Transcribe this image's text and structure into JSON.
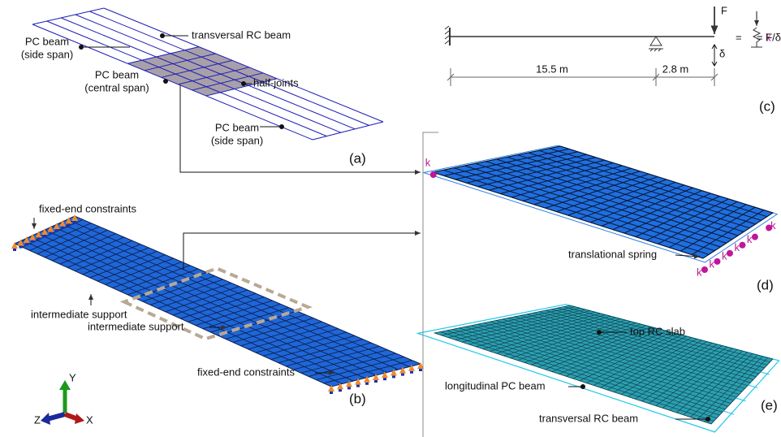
{
  "panel_a": {
    "label": "(a)",
    "pc_beam_side_1": [
      "PC beam",
      "(side span)"
    ],
    "transversal_rc_beam": "transversal RC beam",
    "pc_beam_central": [
      "PC beam",
      "(central span)"
    ],
    "half_joints": "half-joints",
    "pc_beam_side_2": [
      "PC beam",
      "(side span)"
    ]
  },
  "panel_b": {
    "label": "(b)",
    "fixed_end_1": "fixed-end constraints",
    "support_1": "intermediate support",
    "support_2": "intermediate support",
    "fixed_end_2": "fixed-end constraints"
  },
  "axes": {
    "y": "Y",
    "z": "Z",
    "x": "X"
  },
  "panel_c": {
    "label": "(c)",
    "force": "F",
    "equals": "=",
    "displacement": "δ",
    "stiffness": "k",
    "stiffness_formula": "= F/δ",
    "span_length": "15.5 m",
    "overhang_length": "2.8 m"
  },
  "panel_d": {
    "label": "(d)",
    "spring_symbol": "k",
    "translational_spring": "translational spring"
  },
  "panel_e": {
    "label": "(e)",
    "top_slab": "top RC slab",
    "longitudinal_beam": "longitudinal PC beam",
    "transversal_beam": "transversal RC beam"
  }
}
